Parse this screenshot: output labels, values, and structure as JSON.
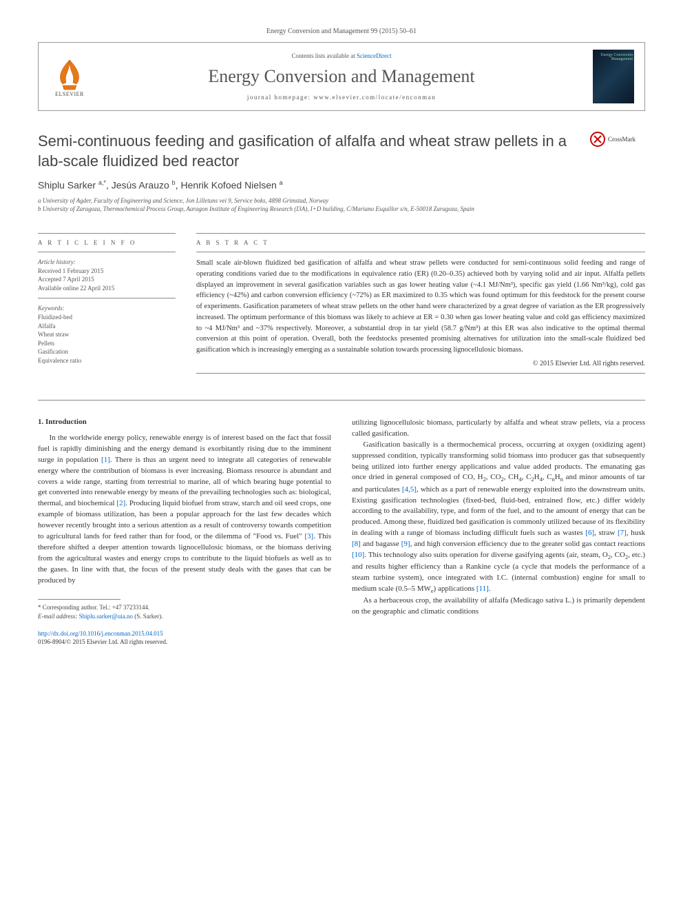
{
  "citation": "Energy Conversion and Management 99 (2015) 50–61",
  "header": {
    "contents_prefix": "Contents lists available at ",
    "contents_link": "ScienceDirect",
    "journal": "Energy Conversion and Management",
    "homepage": "journal homepage: www.elsevier.com/locate/enconman",
    "cover_text": "Energy Conversion Management"
  },
  "title": "Semi-continuous feeding and gasification of alfalfa and wheat straw pellets in a lab-scale fluidized bed reactor",
  "crossmark_label": "CrossMark",
  "authors_html": "Shiplu Sarker <sup>a,*</sup>, Jesús Arauzo <sup>b</sup>, Henrik Kofoed Nielsen <sup>a</sup>",
  "affiliations": {
    "a": "a University of Agder, Faculty of Engineering and Science, Jon Lilletuns vei 9, Service boks, 4898 Grimstad, Norway",
    "b": "b University of Zaragoza, Thermochemical Process Group, Aaragon Institute of Engineering Research (I3A), I+D building, C/Mariano Esquillor s/n, E-50018 Zaragoza, Spain"
  },
  "article_info": {
    "heading": "A R T I C L E   I N F O",
    "history_label": "Article history:",
    "received": "Received 1 February 2015",
    "accepted": "Accepted 7 April 2015",
    "online": "Available online 22 April 2015",
    "keywords_label": "Keywords:",
    "keywords": [
      "Fluidized-bed",
      "Alfalfa",
      "Wheat straw",
      "Pellets",
      "Gasification",
      "Equivalence ratio"
    ]
  },
  "abstract": {
    "heading": "A B S T R A C T",
    "text": "Small scale air-blown fluidized bed gasification of alfalfa and wheat straw pellets were conducted for semi-continuous solid feeding and range of operating conditions varied due to the modifications in equivalence ratio (ER) (0.20–0.35) achieved both by varying solid and air input. Alfalfa pellets displayed an improvement in several gasification variables such as gas lower heating value (~4.1 MJ/Nm³), specific gas yield (1.66 Nm³/kg), cold gas efficiency (~42%) and carbon conversion efficiency (~72%) as ER maximized to 0.35 which was found optimum for this feedstock for the present course of experiments. Gasification parameters of wheat straw pellets on the other hand were characterized by a great degree of variation as the ER progressively increased. The optimum performance of this biomass was likely to achieve at ER = 0.30 when gas lower heating value and cold gas efficiency maximized to ~4 MJ/Nm³ and ~37% respectively. Moreover, a substantial drop in tar yield (58.7 g/Nm³) at this ER was also indicative to the optimal thermal conversion at this point of operation. Overall, both the feedstocks presented promising alternatives for utilization into the small-scale fluidized bed gasification which is increasingly emerging as a sustainable solution towards processing lignocellulosic biomass.",
    "copyright": "© 2015 Elsevier Ltd. All rights reserved."
  },
  "section1_heading": "1. Introduction",
  "body": {
    "col1_p1_a": "In the worldwide energy policy, renewable energy is of interest based on the fact that fossil fuel is rapidly diminishing and the energy demand is exorbitantly rising due to the imminent surge in population ",
    "col1_p1_b": ". There is thus an urgent need to integrate all categories of renewable energy where the contribution of biomass is ever increasing. Biomass resource is abundant and covers a wide range, starting from terrestrial to marine, all of which bearing huge potential to get converted into renewable energy by means of the prevailing technologies such as: biological, thermal, and biochemical ",
    "col1_p1_c": ". Producing liquid biofuel from straw, starch and oil seed crops, one example of biomass utilization, has been a popular approach for the last few decades which however recently brought into a serious attention as a result of controversy towards competition to agricultural lands for feed rather than for food, or the dilemma of \"Food vs. Fuel\" ",
    "col1_p1_d": ". This therefore shifted a deeper attention towards lignocellulosic biomass, or the biomass deriving from the agricultural wastes and energy crops to contribute to the liquid biofuels as well as to the gases. In line with that, the focus of the present study deals with the gases that can be produced by",
    "col2_p1": "utilizing lignocellulosic biomass, particularly by alfalfa and wheat straw pellets, via a process called gasification.",
    "col2_p2_a": "Gasification basically is a thermochemical process, occurring at oxygen (oxidizing agent) suppressed condition, typically transforming solid biomass into producer gas that subsequently being utilized into further energy applications and value added products. The emanating gas once dried in general composed of CO, H",
    "col2_p2_b": ", which as a part of renewable energy exploited into the downstream units. Existing gasification technologies (fixed-bed, fluid-bed, entrained flow, etc.) differ widely according to the availability, type, and form of the fuel, and to the amount of energy that can be produced. Among these, fluidized bed gasification is commonly utilized because of its flexibility in dealing with a range of biomass including difficult fuels such as wastes ",
    "col2_p2_c": ", and high conversion efficiency due to the greater solid gas contact reactions ",
    "col2_p2_d": ". This technology also suits operation for diverse gasifying agents (air, steam, O",
    "col2_p2_e": ", etc.) and results higher efficiency than a Rankine cycle (a cycle that models the performance of a steam turbine system), once integrated with I.C. (internal combustion) engine for small to medium scale (0.5–5 MW",
    "col2_p2_f": ") applications ",
    "col2_p3": "As a herbaceous crop, the availability of alfalfa (Medicago sativa L.) is primarily dependent on the geographic and climatic conditions"
  },
  "refs": {
    "r1": "[1]",
    "r2": "[2]",
    "r3": "[3]",
    "r45": "[4,5]",
    "r6": "[6]",
    "r7": "[7]",
    "r8": "[8]",
    "r9": "[9]",
    "r10": "[10]",
    "r11": "[11]"
  },
  "straw": ", straw ",
  "husk": ", husk ",
  "and_bagasse": " and bagasse ",
  "footnote": {
    "corr": "* Corresponding author. Tel.: +47 37233144.",
    "email_label": "E-mail address: ",
    "email": "Shiplu.sarker@uia.no",
    "email_suffix": " (S. Sarker)."
  },
  "footer": {
    "doi": "http://dx.doi.org/10.1016/j.enconman.2015.04.015",
    "issn": "0196-8904/© 2015 Elsevier Ltd. All rights reserved."
  },
  "colors": {
    "link": "#0066cc",
    "text": "#333333",
    "muted": "#555555",
    "rule": "#888888"
  }
}
